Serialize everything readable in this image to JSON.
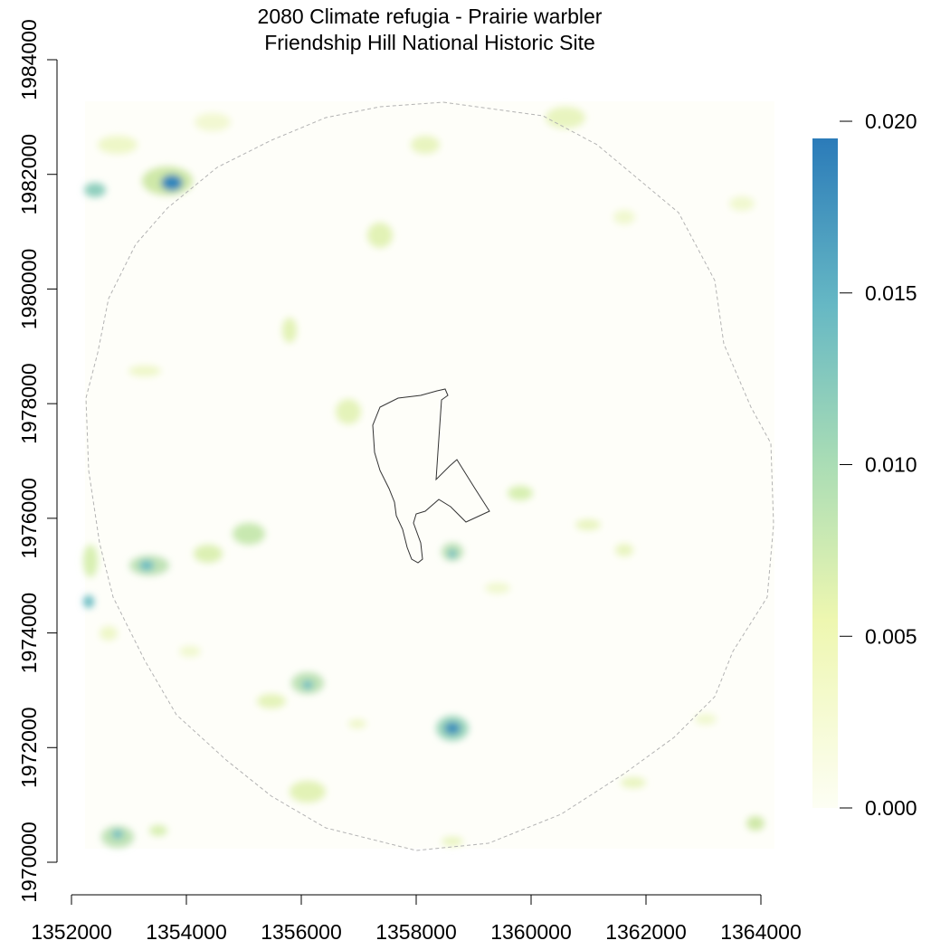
{
  "title": "2080 Climate refugia - Prairie warbler",
  "subtitle": "Friendship Hill National Historic Site",
  "map": {
    "type": "raster",
    "x_ticks": [
      "1352000",
      "1354000",
      "1356000",
      "1358000",
      "1360000",
      "1362000",
      "1364000"
    ],
    "y_ticks": [
      "1970000",
      "1972000",
      "1974000",
      "1976000",
      "1978000",
      "1980000",
      "1982000",
      "1984000"
    ],
    "x_range": [
      1352000,
      1364000
    ],
    "y_range": [
      1970000,
      1984000
    ],
    "buffer_boundary": "dashed circle",
    "park_boundary": "solid outline",
    "colors": {
      "low": "#fdfef4",
      "mid_low": "#eef7b0",
      "mid": "#a8dcb5",
      "mid_high": "#66b8c4",
      "high": "#2b7bb9",
      "buffer_line": "#b3b3b3",
      "park_line": "#333333"
    }
  },
  "legend": {
    "ticks": [
      "0.000",
      "0.005",
      "0.010",
      "0.015",
      "0.020"
    ],
    "range": [
      0,
      0.0195
    ]
  }
}
